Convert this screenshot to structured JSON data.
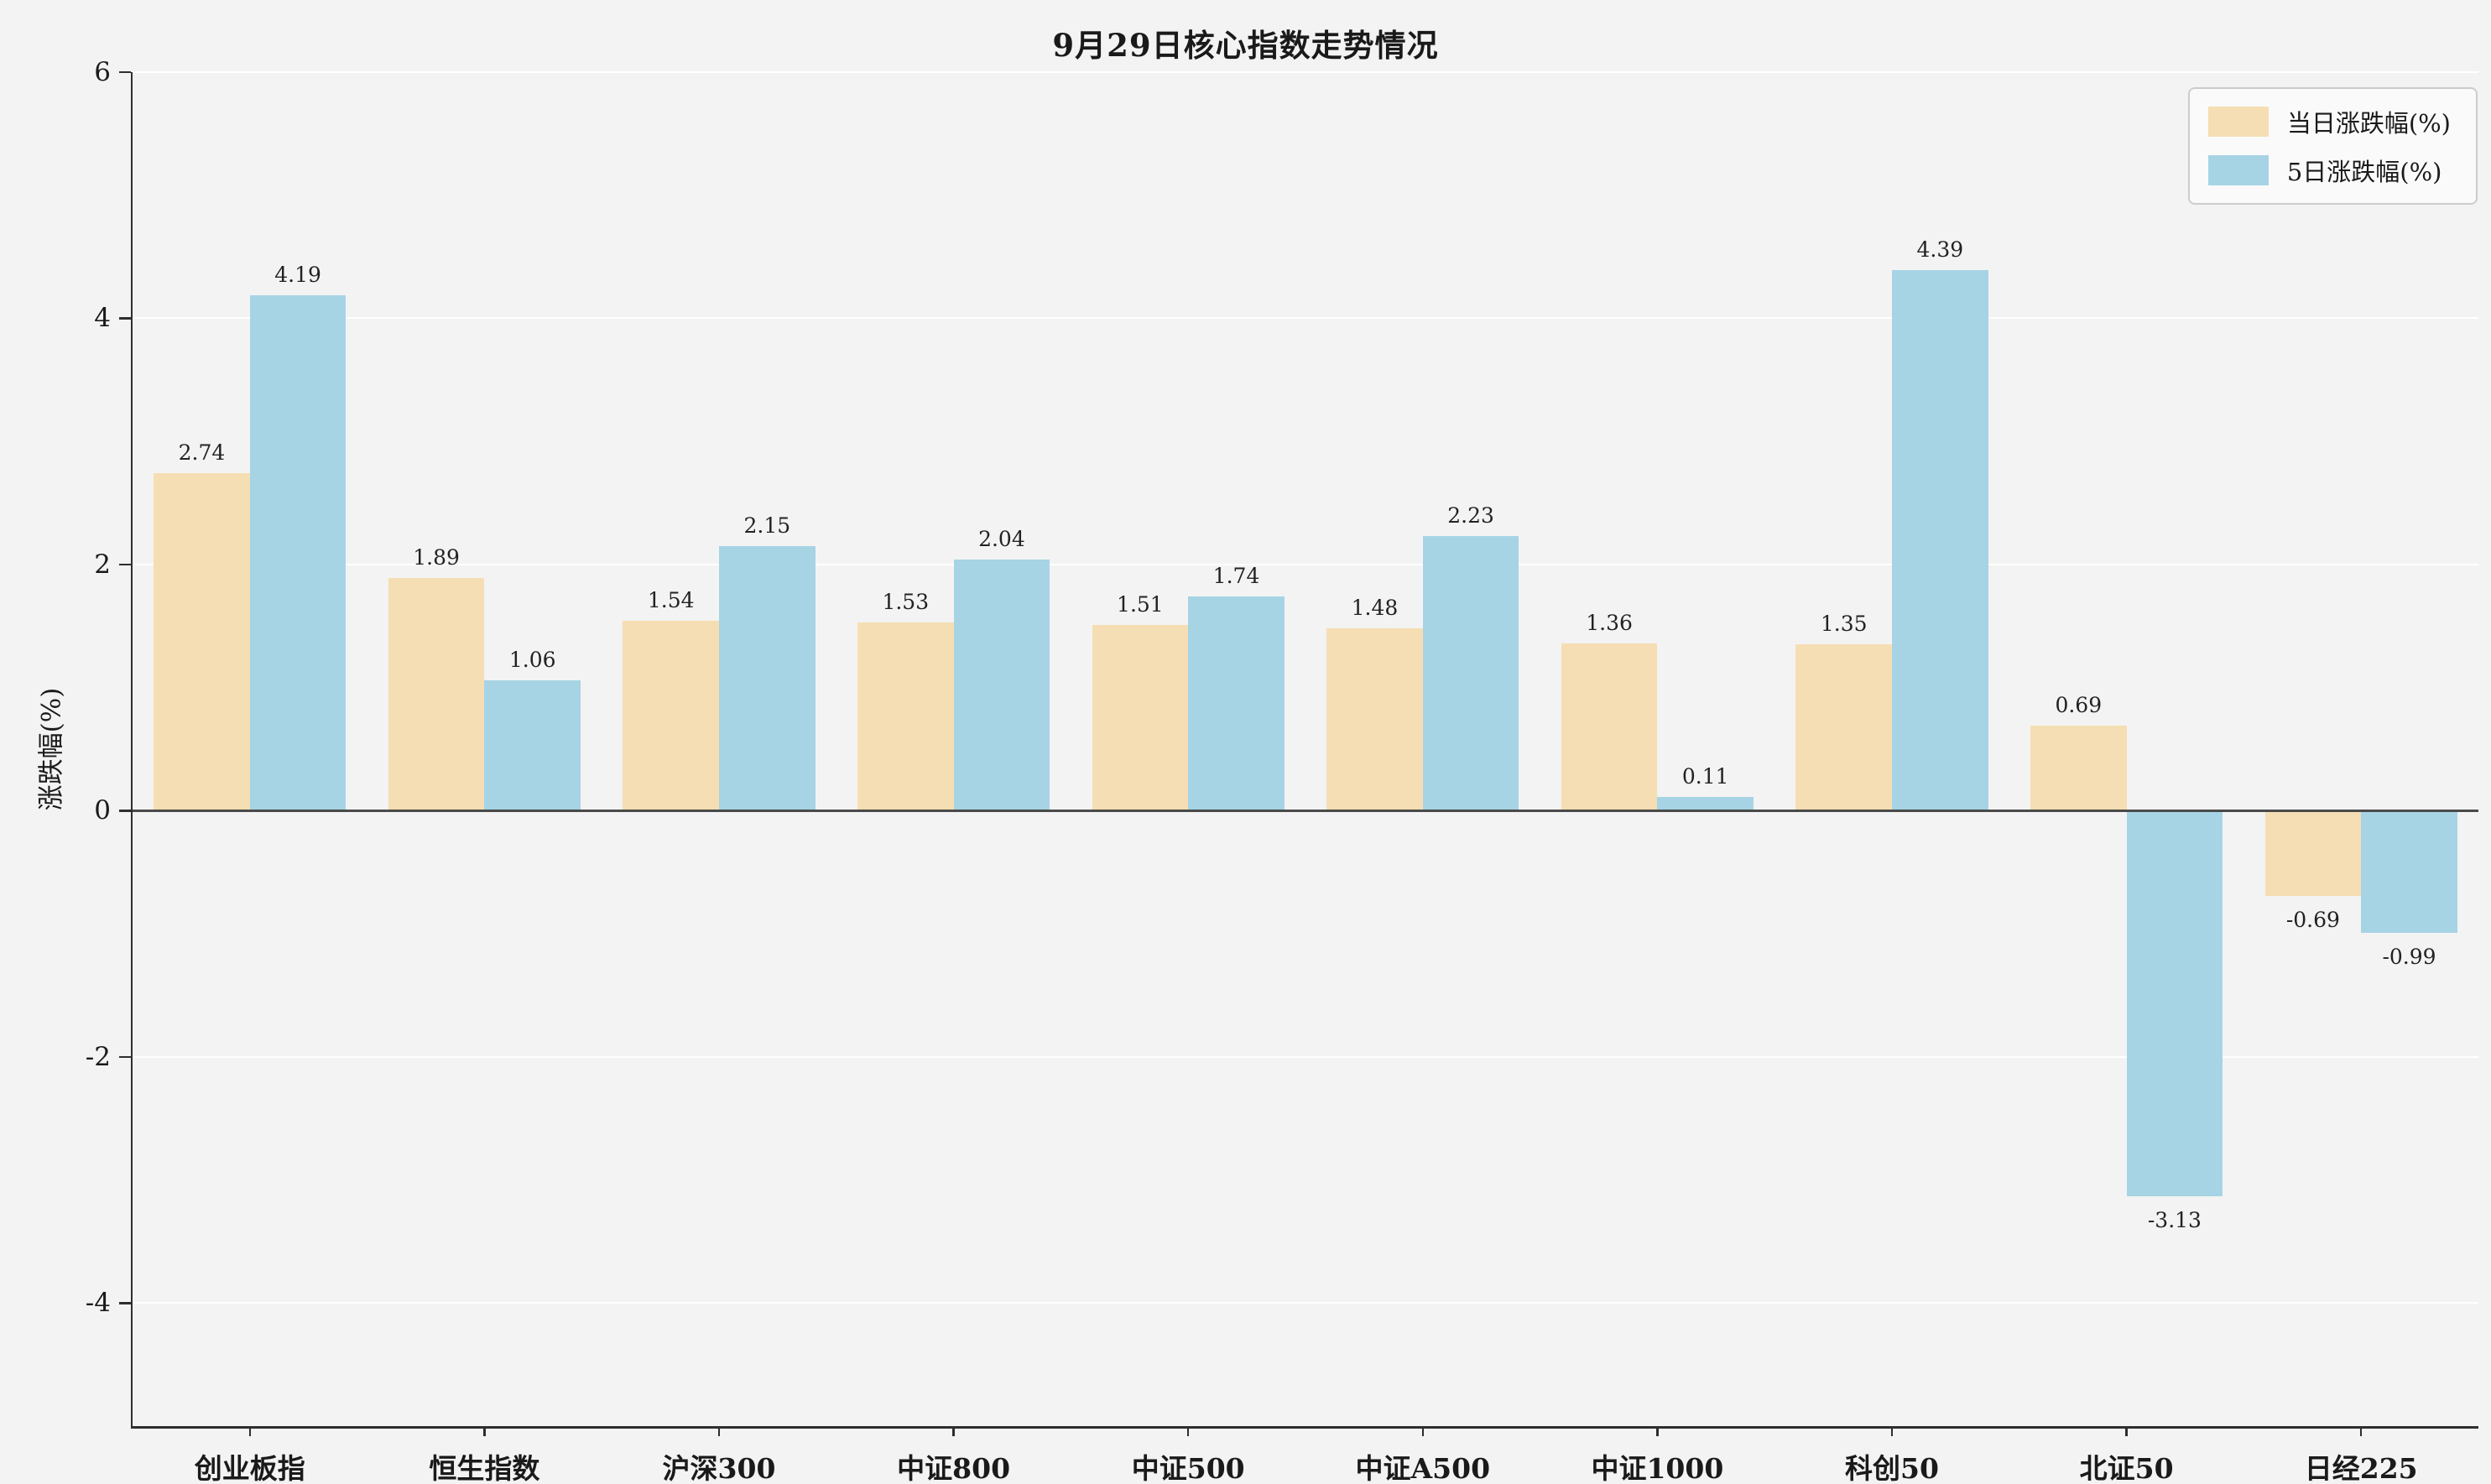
{
  "chart_data": {
    "type": "bar",
    "title": "9月29日核心指数走势情况",
    "ylabel": "涨跌幅(%)",
    "categories": [
      "创业板指",
      "恒生指数",
      "沪深300",
      "中证800",
      "中证500",
      "中证A500",
      "中证1000",
      "科创50",
      "北证50",
      "日经225"
    ],
    "series": [
      {
        "name": "当日涨跌幅(%)",
        "color": "#F5DEB3",
        "values": [
          2.74,
          1.89,
          1.54,
          1.53,
          1.51,
          1.48,
          1.36,
          1.35,
          0.69,
          -0.69
        ]
      },
      {
        "name": "5日涨跌幅(%)",
        "color": "#A6D4E4",
        "values": [
          4.19,
          1.06,
          2.15,
          2.04,
          1.74,
          2.23,
          0.11,
          4.39,
          -3.13,
          -0.99
        ]
      }
    ],
    "ylim": [
      -5,
      6
    ],
    "yticks": [
      6,
      4,
      2,
      0,
      -2,
      -4
    ],
    "grid": true,
    "legend_position": "top-right"
  },
  "colors": {
    "figure_bg": "#f3f3f3",
    "plot_bg": "#f3f3f3",
    "gridline": "#ffffff",
    "spine": "#2e2e2e",
    "zero_line": "#4a4a4a",
    "legend_bg": "#fafafa",
    "legend_border": "#cccccc"
  }
}
